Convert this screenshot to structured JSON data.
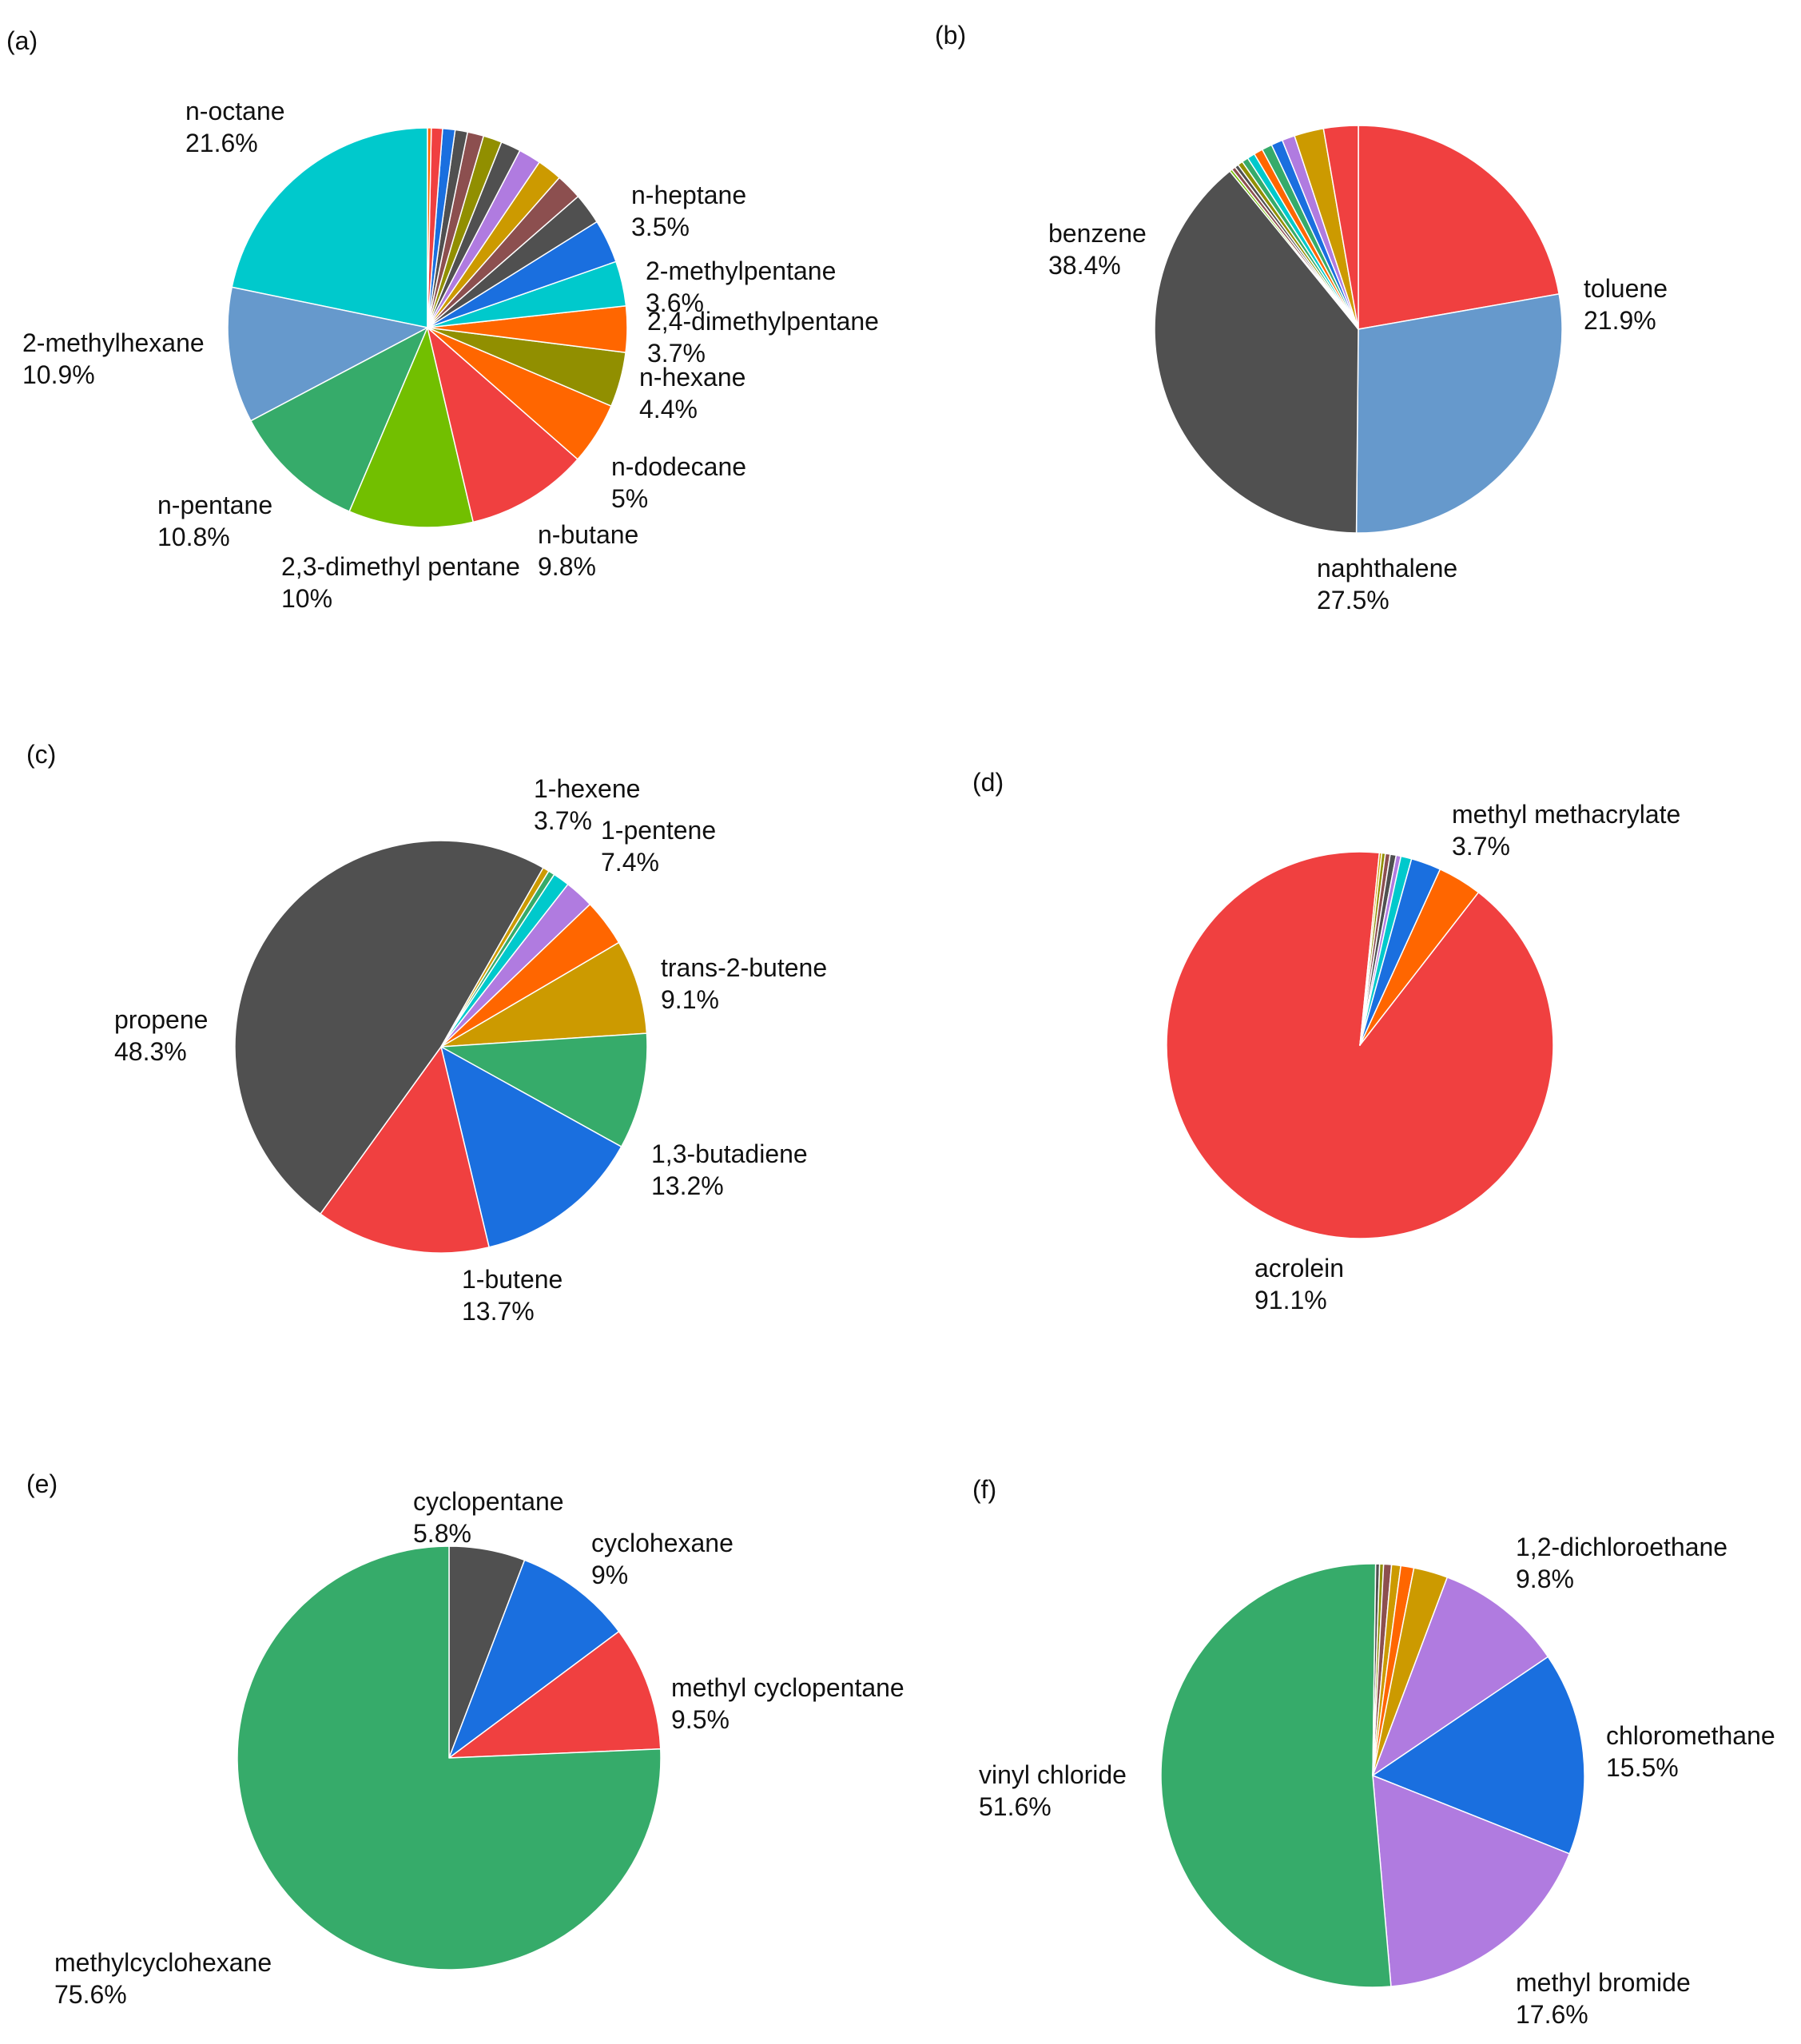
{
  "chart_data": [
    {
      "type": "pie",
      "panel_label": "(a)",
      "slices": [
        {
          "name": "n-octane",
          "value": 21.6,
          "display": "21.6%",
          "color": "#00c9cc"
        },
        {
          "name": "2-methylhexane",
          "value": 10.9,
          "display": "10.9%",
          "color": "#6699cc"
        },
        {
          "name": "n-pentane",
          "value": 10.8,
          "display": "10.8%",
          "color": "#36ab6a"
        },
        {
          "name": "2,3-dimethyl pentane",
          "value": 10.0,
          "display": "10%",
          "color": "#72bf00"
        },
        {
          "name": "n-butane",
          "value": 9.8,
          "display": "9.8%",
          "color": "#f04040"
        },
        {
          "name": "n-dodecane",
          "value": 5.0,
          "display": "5%",
          "color": "#ff6600"
        },
        {
          "name": "n-hexane",
          "value": 4.4,
          "display": "4.4%",
          "color": "#918f00"
        },
        {
          "name": "2,4-dimethylpentane",
          "value": 3.7,
          "display": "3.7%",
          "color": "#ff6600"
        },
        {
          "name": "2-methylpentane",
          "value": 3.6,
          "display": "3.6%",
          "color": "#00c9cc"
        },
        {
          "name": "n-heptane",
          "value": 3.5,
          "display": "3.5%",
          "color": "#1a6fdf"
        },
        {
          "name": "",
          "value": 2.5,
          "color": "#505050"
        },
        {
          "name": "",
          "value": 2.1,
          "color": "#8c4f4f"
        },
        {
          "name": "",
          "value": 2.0,
          "color": "#cc9a00"
        },
        {
          "name": "",
          "value": 1.8,
          "color": "#b07be0"
        },
        {
          "name": "",
          "value": 1.6,
          "color": "#505050"
        },
        {
          "name": "",
          "value": 1.5,
          "color": "#918f00"
        },
        {
          "name": "",
          "value": 1.3,
          "color": "#8c4f4f"
        },
        {
          "name": "",
          "value": 1.0,
          "color": "#505050"
        },
        {
          "name": "",
          "value": 1.0,
          "color": "#1a6fdf"
        },
        {
          "name": "",
          "value": 0.9,
          "color": "#f04040"
        },
        {
          "name": "",
          "value": 0.3,
          "color": "#ff6600"
        }
      ]
    },
    {
      "type": "pie",
      "panel_label": "(b)",
      "slices": [
        {
          "name": "toluene",
          "value": 21.9,
          "display": "21.9%",
          "color": "#f04040"
        },
        {
          "name": "naphthalene",
          "value": 27.5,
          "display": "27.5%",
          "color": "#6699cc"
        },
        {
          "name": "benzene",
          "value": 38.4,
          "display": "38.4%",
          "color": "#505050"
        },
        {
          "name": "",
          "value": 0.2,
          "color": "#72bf00"
        },
        {
          "name": "",
          "value": 0.3,
          "color": "#8c4f4f"
        },
        {
          "name": "",
          "value": 0.3,
          "color": "#505050"
        },
        {
          "name": "",
          "value": 0.4,
          "color": "#918f00"
        },
        {
          "name": "",
          "value": 0.5,
          "color": "#36ab6a"
        },
        {
          "name": "",
          "value": 0.6,
          "color": "#00c9cc"
        },
        {
          "name": "",
          "value": 0.7,
          "color": "#ff6600"
        },
        {
          "name": "",
          "value": 0.8,
          "color": "#36ab6a"
        },
        {
          "name": "",
          "value": 0.9,
          "color": "#1a6fdf"
        },
        {
          "name": "",
          "value": 1.0,
          "color": "#b07be0"
        },
        {
          "name": "",
          "value": 2.3,
          "color": "#cc9a00"
        },
        {
          "name": "",
          "value": 2.7,
          "color": "#f04040"
        }
      ]
    },
    {
      "type": "pie",
      "panel_label": "(c)",
      "slices": [
        {
          "name": "1-pentene",
          "value": 7.4,
          "display": "7.4%",
          "color": "#cc9a00"
        },
        {
          "name": "trans-2-butene",
          "value": 9.1,
          "display": "9.1%",
          "color": "#36ab6a"
        },
        {
          "name": "1,3-butadiene",
          "value": 13.2,
          "display": "13.2%",
          "color": "#1a6fdf"
        },
        {
          "name": "1-butene",
          "value": 13.7,
          "display": "13.7%",
          "color": "#f04040"
        },
        {
          "name": "propene",
          "value": 48.3,
          "display": "48.3%",
          "color": "#505050"
        },
        {
          "name": "",
          "value": 0.5,
          "color": "#cc9a00"
        },
        {
          "name": "",
          "value": 0.5,
          "color": "#36ab6a"
        },
        {
          "name": "",
          "value": 1.3,
          "color": "#00c9cc"
        },
        {
          "name": "",
          "value": 2.3,
          "color": "#b07be0"
        },
        {
          "name": "1-hexene",
          "value": 3.7,
          "display": "3.7%",
          "color": "#ff6600"
        }
      ]
    },
    {
      "type": "pie",
      "panel_label": "(d)",
      "slices": [
        {
          "name": "methyl methacrylate",
          "value": 3.7,
          "display": "3.7%",
          "color": "#ff6600"
        },
        {
          "name": "acrolein",
          "value": 91.1,
          "display": "91.1%",
          "color": "#f04040"
        },
        {
          "name": "",
          "value": 0.2,
          "color": "#cc9a00"
        },
        {
          "name": "",
          "value": 0.3,
          "color": "#918f00"
        },
        {
          "name": "",
          "value": 0.4,
          "color": "#8c4f4f"
        },
        {
          "name": "",
          "value": 0.5,
          "color": "#505050"
        },
        {
          "name": "",
          "value": 0.4,
          "color": "#b07be0"
        },
        {
          "name": "",
          "value": 0.9,
          "color": "#00c9cc"
        },
        {
          "name": "",
          "value": 2.5,
          "color": "#1a6fdf"
        }
      ]
    },
    {
      "type": "pie",
      "panel_label": "(e)",
      "slices": [
        {
          "name": "cyclopentane",
          "value": 5.8,
          "display": "5.8%",
          "color": "#505050"
        },
        {
          "name": "cyclohexane",
          "value": 9.0,
          "display": "9%",
          "color": "#1a6fdf"
        },
        {
          "name": "methyl cyclopentane",
          "value": 9.5,
          "display": "9.5%",
          "color": "#f04040"
        },
        {
          "name": "methylcyclohexane",
          "value": 75.6,
          "display": "75.6%",
          "color": "#36ab6a"
        }
      ]
    },
    {
      "type": "pie",
      "panel_label": "(f)",
      "slices": [
        {
          "name": "1,2-dichloroethane",
          "value": 9.8,
          "display": "9.8%",
          "color": "#b07be0"
        },
        {
          "name": "chloromethane",
          "value": 15.5,
          "display": "15.5%",
          "color": "#1a6fdf"
        },
        {
          "name": "methyl bromide",
          "value": 17.6,
          "display": "17.6%",
          "color": "#b07be0"
        },
        {
          "name": "vinyl chloride",
          "value": 51.6,
          "display": "51.6%",
          "color": "#36ab6a"
        },
        {
          "name": "",
          "value": 0.3,
          "color": "#505050"
        },
        {
          "name": "",
          "value": 0.3,
          "color": "#918f00"
        },
        {
          "name": "",
          "value": 0.6,
          "color": "#8c4f4f"
        },
        {
          "name": "",
          "value": 0.7,
          "color": "#cc9a00"
        },
        {
          "name": "",
          "value": 1.0,
          "color": "#ff6600"
        },
        {
          "name": "",
          "value": 2.6,
          "color": "#cc9a00"
        }
      ]
    }
  ]
}
